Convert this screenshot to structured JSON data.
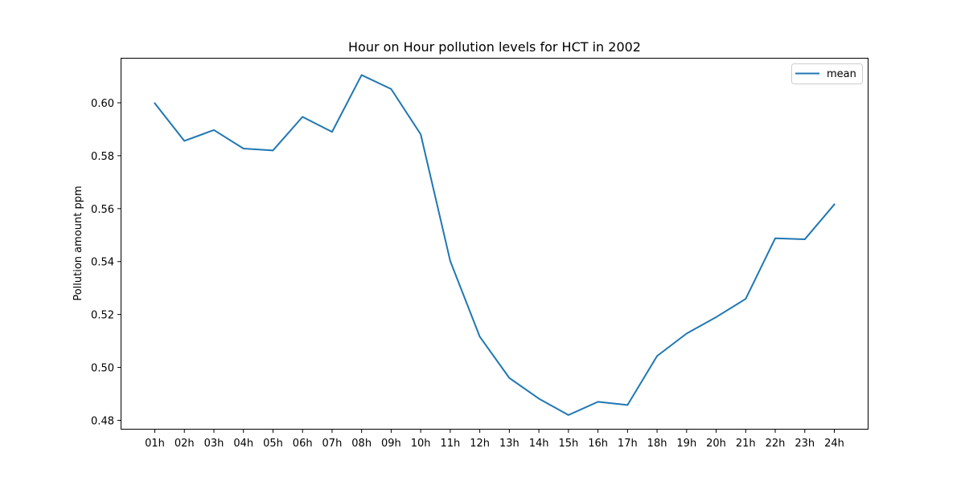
{
  "chart_data": {
    "type": "line",
    "title": "Hour on Hour pollution levels for HCT in 2002",
    "xlabel": "",
    "ylabel": "Pollution amount ppm",
    "categories": [
      "01h",
      "02h",
      "03h",
      "04h",
      "05h",
      "06h",
      "07h",
      "08h",
      "09h",
      "10h",
      "11h",
      "12h",
      "13h",
      "14h",
      "15h",
      "16h",
      "17h",
      "18h",
      "19h",
      "20h",
      "21h",
      "22h",
      "23h",
      "24h"
    ],
    "series": [
      {
        "name": "mean",
        "color": "#1f77b4",
        "values": [
          0.5998,
          0.5856,
          0.5897,
          0.5827,
          0.582,
          0.5947,
          0.589,
          0.6105,
          0.6052,
          0.5881,
          0.5402,
          0.5116,
          0.496,
          0.4882,
          0.482,
          0.487,
          0.4858,
          0.5043,
          0.5128,
          0.519,
          0.5259,
          0.5488,
          0.5484,
          0.5616
        ]
      }
    ],
    "ylim": [
      0.4765,
      0.617
    ],
    "yticks": [
      0.48,
      0.5,
      0.52,
      0.54,
      0.56,
      0.58,
      0.6
    ],
    "ytick_labels": [
      "0.48",
      "0.50",
      "0.52",
      "0.54",
      "0.56",
      "0.58",
      "0.60"
    ],
    "grid": false,
    "legend_position": "top-right"
  }
}
